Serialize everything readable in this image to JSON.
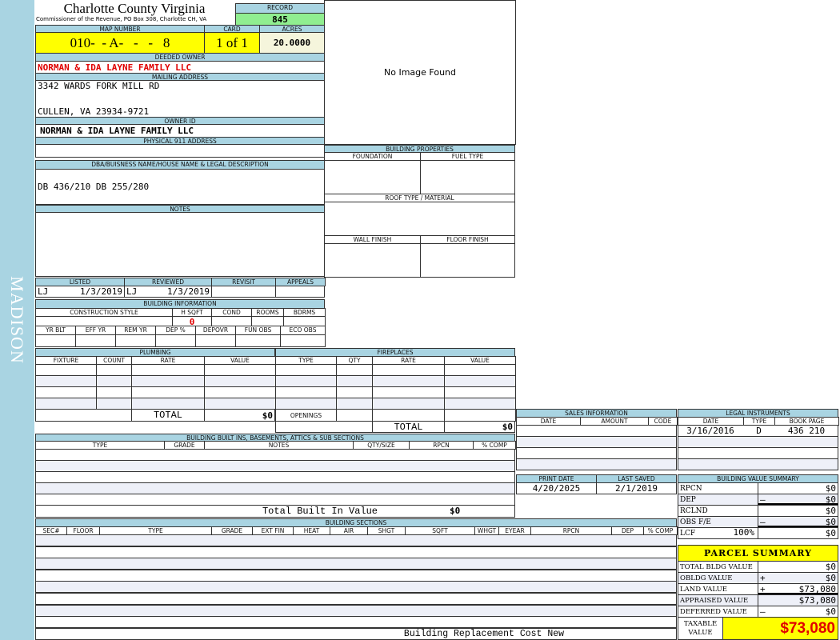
{
  "sidebar": {
    "district": "MADISON"
  },
  "header": {
    "county_title": "Charlotte County Virginia",
    "subtitle": "Commissioner of the Revenue, PO Box 308, Charlotte CH, VA",
    "record_label": "RECORD",
    "record_value": "845",
    "map_number_label": "MAP NUMBER",
    "map_number": "010-  - A-   -   -   8",
    "card_label": "CARD",
    "card": "1 of 1",
    "acres_label": "ACRES",
    "acres": "20.0000",
    "image_text": "No Image Found"
  },
  "owner": {
    "deeded_owner_label": "DEEDED OWNER",
    "deeded_owner": "NORMAN & IDA LAYNE FAMILY LLC",
    "mailing_label": "MAILING ADDRESS",
    "mailing_line1": "3342 WARDS FORK MILL RD",
    "mailing_line2": "CULLEN, VA 23934-9721",
    "owner_id_label": "OWNER ID",
    "owner_id": "NORMAN & IDA LAYNE FAMILY LLC",
    "physical_label": "PHYSICAL 911 ADDRESS"
  },
  "dba": {
    "label": "DBA/BUISNESS NAME/HOUSE NAME & LEGAL DESCRIPTION",
    "value": "DB 436/210 DB 255/280"
  },
  "notes": {
    "label": "NOTES"
  },
  "building_properties": {
    "label": "BUILDING PROPERTIES",
    "foundation_label": "FOUNDATION",
    "fuel_label": "FUEL TYPE",
    "roof_label": "ROOF TYPE / MATERIAL",
    "wall_label": "WALL FINISH",
    "floor_label": "FLOOR FINISH"
  },
  "listing": {
    "listed_label": "LISTED",
    "listed_by": "LJ",
    "listed_date": "1/3/2019",
    "reviewed_label": "REVIEWED",
    "reviewed_by": "LJ",
    "reviewed_date": "1/3/2019",
    "revisit_label": "REVISIT",
    "appeals_label": "APPEALS"
  },
  "building_info": {
    "label": "BUILDING INFORMATION",
    "columns1": [
      "CONSTRUCTION STYLE",
      "H SQFT",
      "COND",
      "ROOMS",
      "BDRMS"
    ],
    "hsqft": "0",
    "columns2": [
      "YR BLT",
      "EFF YR",
      "REM YR",
      "DEP %",
      "DEPOVR",
      "FUN OBS",
      "ECO OBS"
    ]
  },
  "plumbing": {
    "label": "PLUMBING",
    "columns": [
      "FIXTURE",
      "COUNT",
      "RATE",
      "VALUE"
    ],
    "total_label": "TOTAL",
    "total": "$0"
  },
  "fireplaces": {
    "label": "FIREPLACES",
    "columns": [
      "TYPE",
      "QTY",
      "RATE",
      "VALUE"
    ],
    "openings_label": "OPENINGS",
    "total_label": "TOTAL",
    "total": "$0"
  },
  "built_ins": {
    "label": "BUILDING BUILT INS, BASEMENTS, ATTICS & SUB SECTIONS",
    "columns": [
      "TYPE",
      "GRADE",
      "NOTES",
      "QTY/SIZE",
      "RPCN",
      "% COMP"
    ],
    "total_label": "Total Built In Value",
    "total": "$0"
  },
  "sections": {
    "label": "BUILDING SECTIONS",
    "columns": [
      "SEC#",
      "FLOOR",
      "TYPE",
      "GRADE",
      "EXT FIN",
      "HEAT",
      "AIR",
      "SHGT",
      "SQFT",
      "WHGT",
      "EYEAR",
      "RPCN",
      "DEP",
      "% COMP"
    ],
    "footer_label": "Building Replacement Cost New"
  },
  "sales": {
    "label": "SALES INFORMATION",
    "columns": [
      "DATE",
      "AMOUNT",
      "CODE"
    ]
  },
  "legal": {
    "label": "LEGAL INSTRUMENTS",
    "columns": [
      "DATE",
      "TYPE",
      "BOOK PAGE"
    ],
    "rows": [
      [
        "3/16/2016",
        "D",
        "436 210"
      ]
    ]
  },
  "dates": {
    "print_label": "PRINT DATE",
    "print_date": "4/20/2025",
    "saved_label": "LAST SAVED",
    "saved_date": "2/1/2019"
  },
  "bvs": {
    "label": "BUILDING VALUE SUMMARY",
    "rows": [
      {
        "label": "RPCN",
        "sign": "",
        "value": "$0"
      },
      {
        "label": "DEP",
        "sign": "–",
        "value": "$0"
      },
      {
        "label": "RCLND",
        "sign": "",
        "value": "$0"
      },
      {
        "label": "OBS F/E",
        "sign": "–",
        "value": "$0"
      },
      {
        "label": "LCF",
        "pct": "100%",
        "sign": "",
        "value": "$0"
      }
    ]
  },
  "parcel": {
    "label": "PARCEL SUMMARY",
    "rows": [
      {
        "label": "TOTAL BLDG VALUE",
        "sign": "",
        "value": "$0"
      },
      {
        "label": "OBLDG VALUE",
        "sign": "+",
        "value": "$0"
      },
      {
        "label": "LAND VALUE",
        "sign": "+",
        "value": "$73,080"
      },
      {
        "label": "APPRAISED VALUE",
        "sign": "",
        "value": "$73,080"
      },
      {
        "label": "DEFERRED VALUE",
        "sign": "–",
        "value": "$0"
      }
    ],
    "taxable_label": "TAXABLE VALUE",
    "taxable": "$73,080"
  },
  "colors": {
    "header_blue": "#a9d4e2",
    "record_green": "#90ee90",
    "highlight_yellow": "#ffff00",
    "value_red": "#e00000"
  }
}
